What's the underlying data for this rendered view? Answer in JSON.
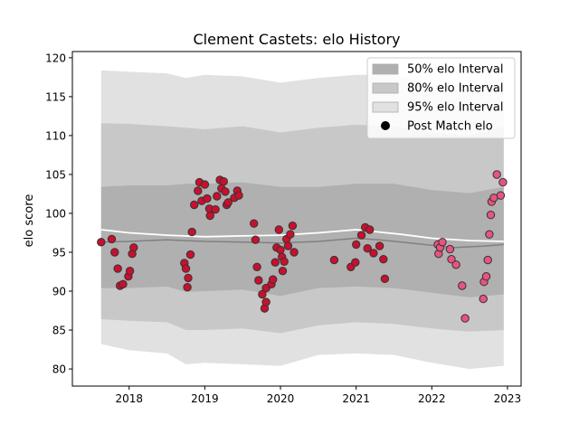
{
  "chart_data": {
    "type": "scatter",
    "title": "Clement Castets: elo History",
    "xlabel": "",
    "ylabel": "elo score",
    "xlim": [
      2017.25,
      2023.18
    ],
    "ylim": [
      77.8,
      120.8
    ],
    "x_ticks": [
      2018,
      2019,
      2020,
      2021,
      2022,
      2023
    ],
    "x_tick_labels": [
      "2018",
      "2019",
      "2020",
      "2021",
      "2022",
      "2023"
    ],
    "y_ticks": [
      80,
      85,
      90,
      95,
      100,
      105,
      110,
      115,
      120
    ],
    "y_tick_labels": [
      "80",
      "85",
      "90",
      "95",
      "100",
      "105",
      "110",
      "115",
      "120"
    ],
    "grid": false,
    "legend_position": "top-right",
    "legend": [
      {
        "label": "50% elo Interval",
        "kind": "band",
        "color": "#b0b0b0"
      },
      {
        "label": "80% elo Interval",
        "kind": "band",
        "color": "#c8c8c8"
      },
      {
        "label": "95% elo Interval",
        "kind": "band",
        "color": "#e1e1e1"
      },
      {
        "label": "Post Match elo",
        "kind": "marker",
        "color": "#000000"
      }
    ],
    "colors": {
      "band95": "#e1e1e1",
      "band80": "#c8c8c8",
      "band50": "#b0b0b0",
      "mean_line": "#ffffff",
      "median_line": "#808080",
      "points_early": "#c8102e",
      "points_recent": "#e75480",
      "point_edge": "#333333"
    },
    "mean_line": [
      [
        2017.63,
        97.9
      ],
      [
        2018.0,
        97.5
      ],
      [
        2018.5,
        97.2
      ],
      [
        2019.0,
        97.0
      ],
      [
        2019.5,
        97.1
      ],
      [
        2020.0,
        97.2
      ],
      [
        2020.5,
        97.5
      ],
      [
        2021.0,
        97.9
      ],
      [
        2021.3,
        97.6
      ],
      [
        2021.6,
        97.3
      ],
      [
        2022.0,
        96.8
      ],
      [
        2022.5,
        96.5
      ],
      [
        2022.95,
        96.4
      ]
    ],
    "median_line": [
      [
        2017.63,
        96.3
      ],
      [
        2018.0,
        96.4
      ],
      [
        2018.5,
        96.6
      ],
      [
        2019.0,
        96.4
      ],
      [
        2019.5,
        96.3
      ],
      [
        2020.0,
        96.2
      ],
      [
        2020.5,
        96.4
      ],
      [
        2021.0,
        96.8
      ],
      [
        2021.3,
        96.6
      ],
      [
        2021.6,
        96.3
      ],
      [
        2022.0,
        95.9
      ],
      [
        2022.3,
        95.6
      ],
      [
        2022.7,
        95.8
      ],
      [
        2022.95,
        96.0
      ]
    ],
    "intervals": [
      {
        "x": 2017.63,
        "p95": [
          83.2,
          118.4
        ],
        "p80": [
          86.4,
          111.6
        ],
        "p50": [
          90.4,
          103.4
        ]
      },
      {
        "x": 2018.0,
        "p95": [
          82.4,
          118.2
        ],
        "p80": [
          86.2,
          111.5
        ],
        "p50": [
          90.4,
          103.6
        ]
      },
      {
        "x": 2018.5,
        "p95": [
          82.0,
          118.0
        ],
        "p80": [
          86.0,
          111.2
        ],
        "p50": [
          90.6,
          103.6
        ]
      },
      {
        "x": 2018.75,
        "p95": [
          80.6,
          117.4
        ],
        "p80": [
          85.0,
          111.0
        ],
        "p50": [
          89.9,
          103.8
        ]
      },
      {
        "x": 2019.0,
        "p95": [
          80.8,
          117.8
        ],
        "p80": [
          85.0,
          110.8
        ],
        "p50": [
          90.0,
          103.8
        ]
      },
      {
        "x": 2019.5,
        "p95": [
          80.6,
          117.6
        ],
        "p80": [
          85.2,
          111.2
        ],
        "p50": [
          90.2,
          104.0
        ]
      },
      {
        "x": 2020.0,
        "p95": [
          80.4,
          116.8
        ],
        "p80": [
          84.6,
          110.4
        ],
        "p50": [
          89.4,
          103.4
        ]
      },
      {
        "x": 2020.5,
        "p95": [
          81.8,
          117.4
        ],
        "p80": [
          85.6,
          111.0
        ],
        "p50": [
          90.4,
          103.4
        ]
      },
      {
        "x": 2021.0,
        "p95": [
          82.0,
          117.8
        ],
        "p80": [
          86.0,
          111.4
        ],
        "p50": [
          90.6,
          103.8
        ]
      },
      {
        "x": 2021.5,
        "p95": [
          81.8,
          117.8
        ],
        "p80": [
          85.8,
          111.2
        ],
        "p50": [
          90.4,
          103.8
        ]
      },
      {
        "x": 2022.0,
        "p95": [
          80.8,
          116.6
        ],
        "p80": [
          85.2,
          110.4
        ],
        "p50": [
          89.8,
          103.0
        ]
      },
      {
        "x": 2022.5,
        "p95": [
          80.0,
          115.8
        ],
        "p80": [
          84.8,
          110.0
        ],
        "p50": [
          89.2,
          102.6
        ]
      },
      {
        "x": 2022.95,
        "p95": [
          80.4,
          117.6
        ],
        "p80": [
          85.0,
          111.2
        ],
        "p50": [
          89.6,
          103.4
        ]
      }
    ],
    "series": [
      {
        "name": "Post Match elo",
        "color_key": "points_early",
        "points": [
          [
            2017.63,
            96.3
          ],
          [
            2017.77,
            96.7
          ],
          [
            2017.81,
            95.0
          ],
          [
            2017.85,
            92.9
          ],
          [
            2017.88,
            90.7
          ],
          [
            2017.92,
            90.9
          ],
          [
            2017.99,
            91.9
          ],
          [
            2018.01,
            92.6
          ],
          [
            2018.04,
            94.8
          ],
          [
            2018.06,
            95.6
          ],
          [
            2018.73,
            93.6
          ],
          [
            2018.75,
            92.9
          ],
          [
            2018.77,
            90.5
          ],
          [
            2018.78,
            91.7
          ],
          [
            2018.81,
            94.7
          ],
          [
            2018.83,
            97.6
          ],
          [
            2018.86,
            101.1
          ],
          [
            2018.91,
            102.9
          ],
          [
            2018.93,
            104.0
          ],
          [
            2018.96,
            101.6
          ],
          [
            2019.0,
            103.7
          ],
          [
            2019.03,
            101.9
          ],
          [
            2019.06,
            100.6
          ],
          [
            2019.07,
            99.7
          ],
          [
            2019.14,
            100.5
          ],
          [
            2019.16,
            102.2
          ],
          [
            2019.2,
            104.3
          ],
          [
            2019.22,
            103.2
          ],
          [
            2019.25,
            104.1
          ],
          [
            2019.27,
            102.8
          ],
          [
            2019.29,
            101.1
          ],
          [
            2019.31,
            101.4
          ],
          [
            2019.39,
            102.0
          ],
          [
            2019.43,
            102.9
          ],
          [
            2019.45,
            102.3
          ],
          [
            2019.65,
            98.7
          ],
          [
            2019.67,
            96.6
          ],
          [
            2019.69,
            93.1
          ],
          [
            2019.71,
            91.4
          ],
          [
            2019.76,
            89.6
          ],
          [
            2019.79,
            87.8
          ],
          [
            2019.81,
            88.6
          ],
          [
            2019.81,
            90.4
          ],
          [
            2019.88,
            90.9
          ],
          [
            2019.9,
            91.5
          ],
          [
            2019.93,
            93.7
          ],
          [
            2019.95,
            95.6
          ],
          [
            2019.98,
            97.9
          ],
          [
            2020.0,
            95.3
          ],
          [
            2020.02,
            94.4
          ],
          [
            2020.03,
            92.6
          ],
          [
            2020.05,
            93.8
          ],
          [
            2020.08,
            96.7
          ],
          [
            2020.1,
            95.8
          ],
          [
            2020.13,
            97.3
          ],
          [
            2020.16,
            98.4
          ],
          [
            2020.18,
            95.0
          ],
          [
            2020.71,
            94.0
          ],
          [
            2020.93,
            93.1
          ],
          [
            2020.99,
            93.7
          ],
          [
            2021.0,
            96.0
          ],
          [
            2021.07,
            97.2
          ],
          [
            2021.12,
            98.2
          ],
          [
            2021.15,
            95.5
          ],
          [
            2021.18,
            97.9
          ],
          [
            2021.23,
            94.9
          ],
          [
            2021.31,
            95.8
          ],
          [
            2021.36,
            94.1
          ],
          [
            2021.38,
            91.6
          ]
        ]
      },
      {
        "name": "Post Match elo",
        "color_key": "points_recent",
        "points": [
          [
            2022.08,
            96.0
          ],
          [
            2022.09,
            94.8
          ],
          [
            2022.11,
            95.6
          ],
          [
            2022.14,
            96.3
          ],
          [
            2022.24,
            95.4
          ],
          [
            2022.26,
            94.1
          ],
          [
            2022.32,
            93.4
          ],
          [
            2022.4,
            90.7
          ],
          [
            2022.44,
            86.5
          ],
          [
            2022.68,
            89.0
          ],
          [
            2022.69,
            91.2
          ],
          [
            2022.72,
            91.9
          ],
          [
            2022.74,
            94.0
          ],
          [
            2022.76,
            97.3
          ],
          [
            2022.78,
            99.8
          ],
          [
            2022.79,
            101.5
          ],
          [
            2022.82,
            102.0
          ],
          [
            2022.86,
            105.0
          ],
          [
            2022.91,
            102.3
          ],
          [
            2022.94,
            104.0
          ]
        ]
      }
    ]
  }
}
